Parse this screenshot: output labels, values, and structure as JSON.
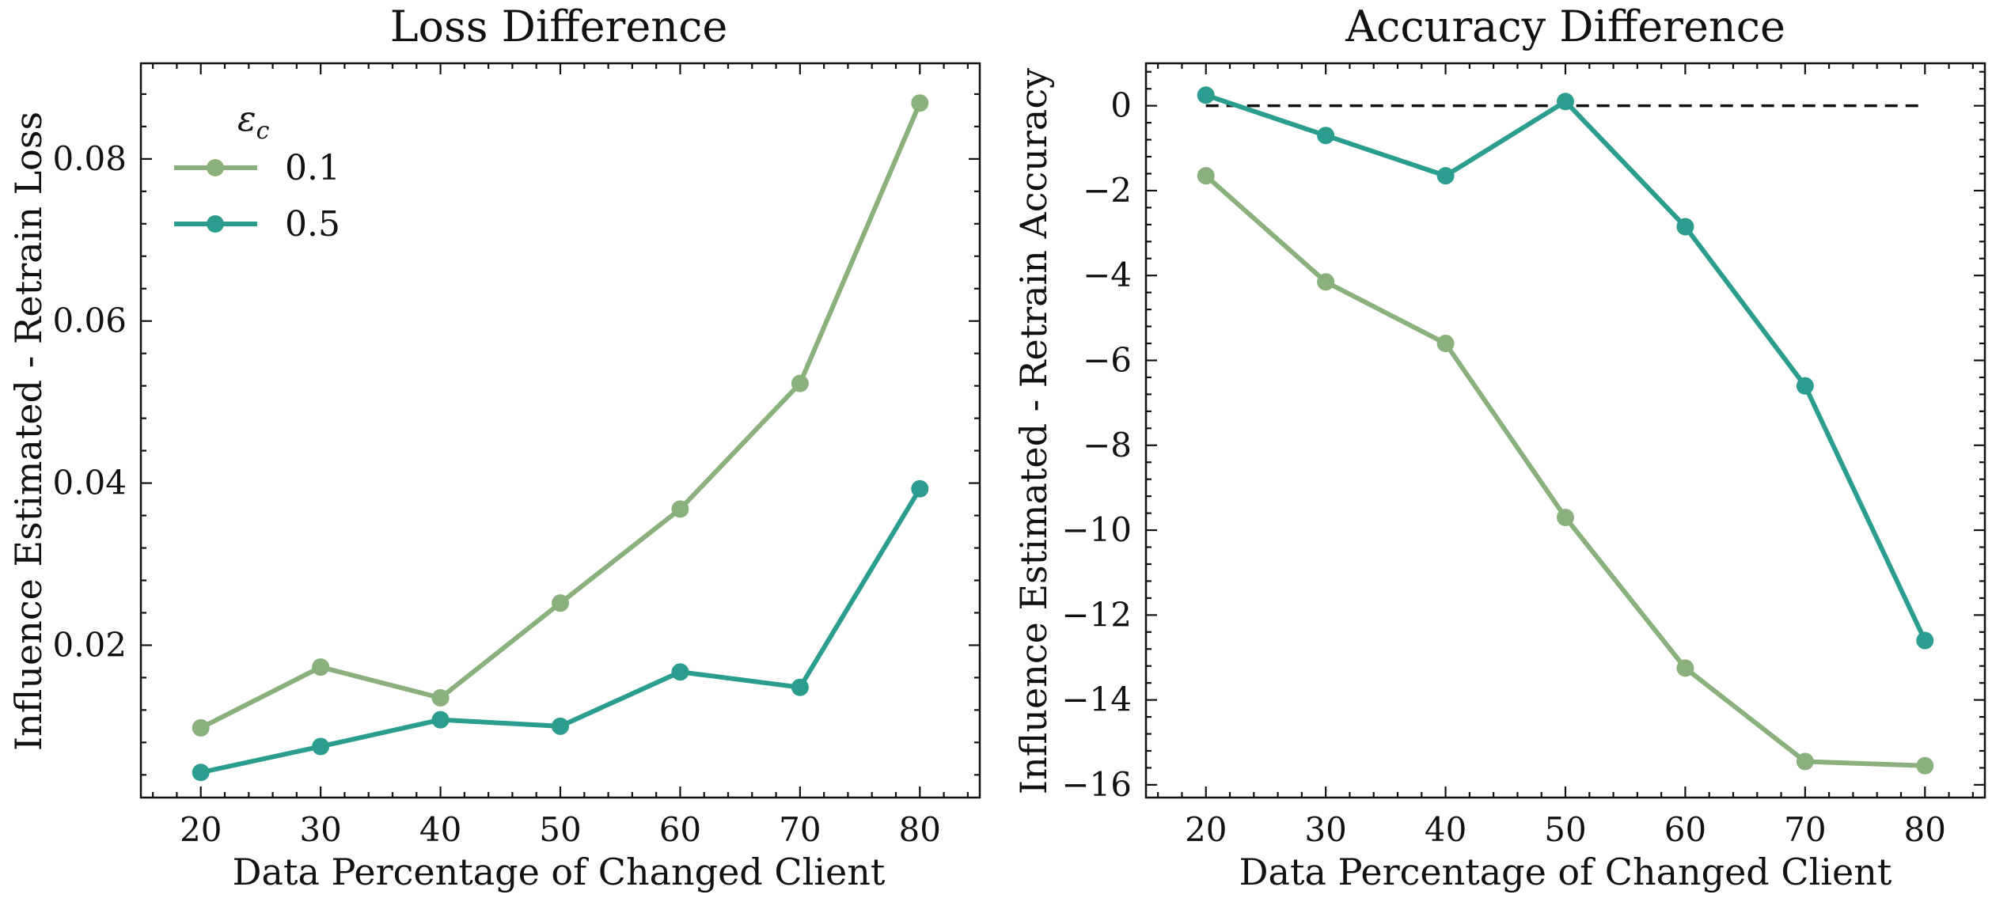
{
  "colors": {
    "eps_0_1": "#8ab07d",
    "eps_0_5": "#2a9d8f",
    "reference_line": "#111111",
    "axes": "#111111",
    "background": "#ffffff"
  },
  "chart_data": [
    {
      "type": "line",
      "title": "Loss Difference",
      "xlabel": "Data Percentage of Changed Client",
      "ylabel": "Influence Estimated - Retrain Loss",
      "x": [
        20,
        30,
        40,
        50,
        60,
        70,
        80
      ],
      "xticks": [
        20,
        30,
        40,
        50,
        60,
        70,
        80
      ],
      "xlim": [
        15,
        85
      ],
      "ylim": [
        0.0012,
        0.0918
      ],
      "yticks": [
        0.02,
        0.04,
        0.06,
        0.08
      ],
      "ytick_labels": [
        "0.02",
        "0.04",
        "0.06",
        "0.08"
      ],
      "grid": false,
      "legend": {
        "title": "ε_c",
        "placement": "top-left",
        "entries": [
          "0.1",
          "0.5"
        ]
      },
      "series": [
        {
          "name": "0.1",
          "values": [
            0.0098,
            0.0173,
            0.0135,
            0.0252,
            0.0368,
            0.0523,
            0.0869
          ]
        },
        {
          "name": "0.5",
          "values": [
            0.0043,
            0.0075,
            0.0108,
            0.01,
            0.0167,
            0.0148,
            0.0393
          ]
        }
      ]
    },
    {
      "type": "line",
      "title": "Accuracy Difference",
      "xlabel": "Data Percentage of Changed Client",
      "ylabel": "Influence Estimated - Retrain Accuracy",
      "x": [
        20,
        30,
        40,
        50,
        60,
        70,
        80
      ],
      "xticks": [
        20,
        30,
        40,
        50,
        60,
        70,
        80
      ],
      "xlim": [
        15,
        85
      ],
      "ylim": [
        -16.3,
        1.0
      ],
      "yticks": [
        0,
        -2,
        -4,
        -6,
        -8,
        -10,
        -12,
        -14,
        -16
      ],
      "ytick_labels": [
        "0",
        "−2",
        "−4",
        "−6",
        "−8",
        "−10",
        "−12",
        "−14",
        "−16"
      ],
      "grid": false,
      "reference_line": {
        "y": 0,
        "x_range": [
          20,
          80
        ],
        "style": "dashed"
      },
      "series": [
        {
          "name": "0.1",
          "values": [
            -1.65,
            -4.15,
            -5.6,
            -9.7,
            -13.25,
            -15.45,
            -15.55
          ]
        },
        {
          "name": "0.5",
          "values": [
            0.25,
            -0.7,
            -1.65,
            0.1,
            -2.85,
            -6.6,
            -12.6
          ]
        }
      ]
    }
  ]
}
